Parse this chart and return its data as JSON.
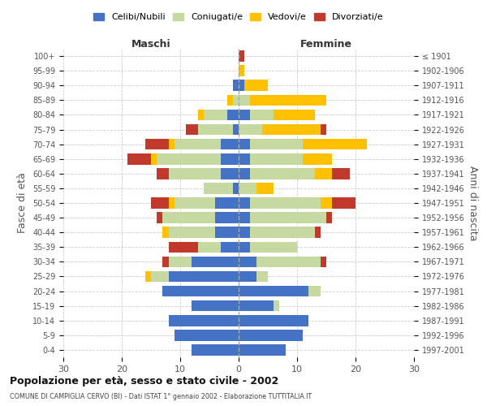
{
  "age_groups": [
    "0-4",
    "5-9",
    "10-14",
    "15-19",
    "20-24",
    "25-29",
    "30-34",
    "35-39",
    "40-44",
    "45-49",
    "50-54",
    "55-59",
    "60-64",
    "65-69",
    "70-74",
    "75-79",
    "80-84",
    "85-89",
    "90-94",
    "95-99",
    "100+"
  ],
  "birth_years": [
    "1997-2001",
    "1992-1996",
    "1987-1991",
    "1982-1986",
    "1977-1981",
    "1972-1976",
    "1967-1971",
    "1962-1966",
    "1957-1961",
    "1952-1956",
    "1947-1951",
    "1942-1946",
    "1937-1941",
    "1932-1936",
    "1927-1931",
    "1922-1926",
    "1917-1921",
    "1912-1916",
    "1907-1911",
    "1902-1906",
    "≤ 1901"
  ],
  "maschi": {
    "celibi": [
      8,
      11,
      12,
      8,
      13,
      12,
      8,
      3,
      4,
      4,
      4,
      1,
      3,
      3,
      3,
      1,
      2,
      0,
      1,
      0,
      0
    ],
    "coniugati": [
      0,
      0,
      0,
      0,
      0,
      3,
      4,
      4,
      8,
      9,
      7,
      5,
      9,
      11,
      8,
      6,
      4,
      1,
      0,
      0,
      0
    ],
    "vedovi": [
      0,
      0,
      0,
      0,
      0,
      1,
      0,
      0,
      1,
      0,
      1,
      0,
      0,
      1,
      1,
      0,
      1,
      1,
      0,
      0,
      0
    ],
    "divorziati": [
      0,
      0,
      0,
      0,
      0,
      0,
      1,
      5,
      0,
      1,
      3,
      0,
      2,
      4,
      4,
      2,
      0,
      0,
      0,
      0,
      0
    ]
  },
  "femmine": {
    "nubili": [
      8,
      11,
      12,
      6,
      12,
      3,
      3,
      2,
      2,
      2,
      2,
      0,
      2,
      2,
      2,
      0,
      2,
      0,
      1,
      0,
      0
    ],
    "coniugate": [
      0,
      0,
      0,
      1,
      2,
      2,
      11,
      8,
      11,
      13,
      12,
      3,
      11,
      9,
      9,
      4,
      4,
      2,
      0,
      0,
      0
    ],
    "vedove": [
      0,
      0,
      0,
      0,
      0,
      0,
      0,
      0,
      0,
      0,
      2,
      3,
      3,
      5,
      11,
      10,
      7,
      13,
      4,
      1,
      0
    ],
    "divorziate": [
      0,
      0,
      0,
      0,
      0,
      0,
      1,
      0,
      1,
      1,
      4,
      0,
      3,
      0,
      0,
      1,
      0,
      0,
      0,
      0,
      1
    ]
  },
  "colors": {
    "celibi": "#4472c4",
    "coniugati": "#c5d9a0",
    "vedovi": "#ffc000",
    "divorziati": "#c0392b"
  },
  "xlim": 30,
  "title": "Popolazione per età, sesso e stato civile - 2002",
  "subtitle": "COMUNE DI CAMPIGLIA CERVO (BI) - Dati ISTAT 1° gennaio 2002 - Elaborazione TUTTITALIA.IT",
  "ylabel_left": "Fasce di età",
  "ylabel_right": "Anni di nascita",
  "xlabel_left": "Maschi",
  "xlabel_right": "Femmine",
  "legend_labels": [
    "Celibi/Nubili",
    "Coniugati/e",
    "Vedovi/e",
    "Divorziati/e"
  ],
  "bg_color": "#ffffff",
  "grid_color": "#cccccc"
}
